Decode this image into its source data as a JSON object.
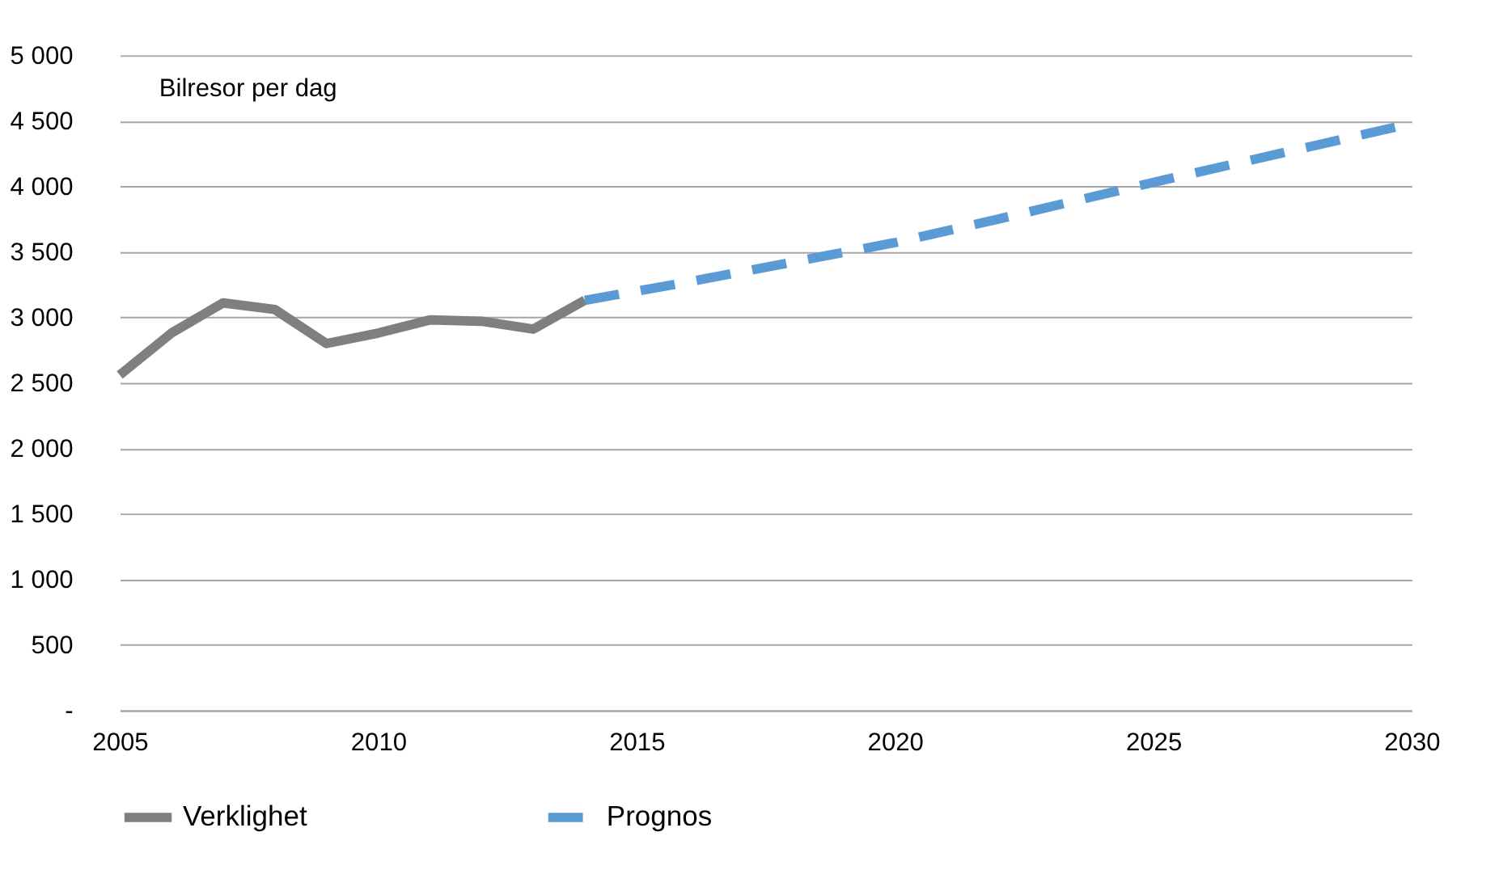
{
  "chart_data": {
    "type": "line",
    "annotations": [
      "Bilresor per dag"
    ],
    "series": [
      {
        "name": "Verklighet",
        "color": "#7f7f7f",
        "line_style": "solid",
        "x": [
          2005,
          2006,
          2007,
          2008,
          2009,
          2010,
          2011,
          2012,
          2013,
          2014
        ],
        "values": [
          2560,
          2880,
          3110,
          3060,
          2800,
          2880,
          2980,
          2970,
          2910,
          3130
        ]
      },
      {
        "name": "Prognos",
        "color": "#5b9bd5",
        "line_style": "dashed",
        "x": [
          2014,
          2016,
          2018,
          2020,
          2022,
          2025,
          2028,
          2030
        ],
        "values": [
          3130,
          3270,
          3420,
          3570,
          3750,
          4030,
          4300,
          4480
        ]
      }
    ],
    "xlim": [
      2005,
      2030
    ],
    "xticks": [
      2005,
      2010,
      2015,
      2020,
      2025,
      2030
    ],
    "ylim": [
      0,
      5000
    ],
    "yticks": [
      {
        "value": 0,
        "label": "-"
      },
      {
        "value": 500,
        "label": "500"
      },
      {
        "value": 1000,
        "label": "1 000"
      },
      {
        "value": 1500,
        "label": "1 500"
      },
      {
        "value": 2000,
        "label": "2 000"
      },
      {
        "value": 2500,
        "label": "2 500"
      },
      {
        "value": 3000,
        "label": "3 000"
      },
      {
        "value": 3500,
        "label": "3 500"
      },
      {
        "value": 4000,
        "label": "4 000"
      },
      {
        "value": 4500,
        "label": "4 500"
      },
      {
        "value": 5000,
        "label": "5 000"
      }
    ],
    "grid": "y",
    "legend": "bottom",
    "marker": "none"
  }
}
